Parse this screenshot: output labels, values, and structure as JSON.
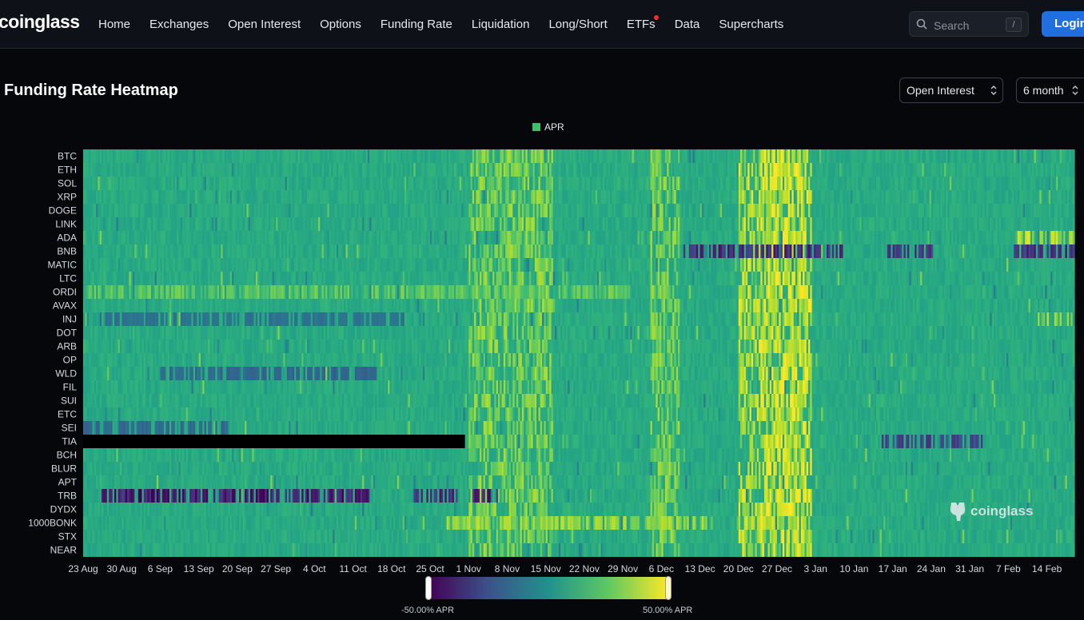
{
  "brand": {
    "logo_text": "coinglass"
  },
  "nav": {
    "items": [
      {
        "label": "Home",
        "name": "nav-home"
      },
      {
        "label": "Exchanges",
        "name": "nav-exchanges"
      },
      {
        "label": "Open Interest",
        "name": "nav-open-interest"
      },
      {
        "label": "Options",
        "name": "nav-options"
      },
      {
        "label": "Funding Rate",
        "name": "nav-funding-rate"
      },
      {
        "label": "Liquidation",
        "name": "nav-liquidation"
      },
      {
        "label": "Long/Short",
        "name": "nav-long-short"
      },
      {
        "label": "ETFs",
        "name": "nav-etfs",
        "badge": true
      },
      {
        "label": "Data",
        "name": "nav-data"
      },
      {
        "label": "Supercharts",
        "name": "nav-supercharts"
      }
    ]
  },
  "search": {
    "placeholder": "Search",
    "shortcut": "/"
  },
  "login": {
    "label": "Login"
  },
  "page": {
    "title": "Funding Rate Heatmap"
  },
  "controls": {
    "sort_value": "Open Interest",
    "range_value": "6 month"
  },
  "legend": {
    "label": "APR",
    "color": "#3fbf6c"
  },
  "watermark": {
    "text": "coinglass"
  },
  "colorbar": {
    "min_label": "-50.00% APR",
    "max_label": "50.00% APR",
    "colors": [
      "#440154",
      "#3b528b",
      "#21918c",
      "#5ec962",
      "#fde725"
    ]
  },
  "chart_data": {
    "type": "heatmap",
    "title": "",
    "value_label": "APR",
    "value_range": [
      -50,
      50
    ],
    "rows": [
      "BTC",
      "ETH",
      "SOL",
      "XRP",
      "DOGE",
      "LINK",
      "ADA",
      "BNB",
      "MATIC",
      "LTC",
      "ORDI",
      "AVAX",
      "INJ",
      "DOT",
      "ARB",
      "OP",
      "WLD",
      "FIL",
      "SUI",
      "ETC",
      "SEI",
      "TIA",
      "BCH",
      "BLUR",
      "APT",
      "TRB",
      "DYDX",
      "1000BONK",
      "STX",
      "NEAR"
    ],
    "x_ticks": [
      "23 Aug",
      "30 Aug",
      "6 Sep",
      "13 Sep",
      "20 Sep",
      "27 Sep",
      "4 Oct",
      "11 Oct",
      "18 Oct",
      "25 Oct",
      "1 Nov",
      "8 Nov",
      "15 Nov",
      "22 Nov",
      "29 Nov",
      "6 Dec",
      "13 Dec",
      "20 Dec",
      "27 Dec",
      "3 Jan",
      "10 Jan",
      "17 Jan",
      "24 Jan",
      "31 Jan",
      "7 Feb",
      "14 Feb"
    ],
    "x_range": [
      "23 Aug",
      "19 Feb"
    ],
    "baseline_apr": 10.95,
    "no_data": [
      {
        "row": "TIA",
        "from": "23 Aug",
        "to": "31 Oct"
      }
    ],
    "high_periods": [
      {
        "from": "1 Nov",
        "to": "16 Nov",
        "apr": 35
      },
      {
        "from": "4 Dec",
        "to": "9 Dec",
        "apr": 35
      },
      {
        "from": "20 Dec",
        "to": "1 Jan",
        "apr": 45
      },
      {
        "from": "24 Dec",
        "to": "2 Jan",
        "apr": 50
      }
    ],
    "row_highlights": [
      {
        "row": "BNB",
        "from": "10 Dec",
        "to": "8 Jan",
        "apr": -45
      },
      {
        "row": "BNB",
        "from": "16 Jan",
        "to": "24 Jan",
        "apr": -40
      },
      {
        "row": "BNB",
        "from": "8 Feb",
        "to": "19 Feb",
        "apr": -45
      },
      {
        "row": "TRB",
        "from": "26 Aug",
        "to": "14 Oct",
        "apr": -50
      },
      {
        "row": "TRB",
        "from": "22 Oct",
        "to": "6 Nov",
        "apr": -45
      },
      {
        "row": "TIA",
        "from": "15 Jan",
        "to": "2 Feb",
        "apr": -35
      },
      {
        "row": "INJ",
        "from": "26 Aug",
        "to": "20 Oct",
        "apr": -15
      },
      {
        "row": "WLD",
        "from": "6 Sep",
        "to": "15 Oct",
        "apr": -20
      },
      {
        "row": "1000BONK",
        "from": "28 Oct",
        "to": "15 Dec",
        "apr": 40
      },
      {
        "row": "ORDI",
        "from": "23 Aug",
        "to": "30 Nov",
        "apr": 30
      },
      {
        "row": "ADA",
        "from": "8 Feb",
        "to": "19 Feb",
        "apr": 45
      },
      {
        "row": "INJ",
        "from": "12 Feb",
        "to": "19 Feb",
        "apr": 45
      },
      {
        "row": "SEI",
        "from": "23 Aug",
        "to": "18 Sep",
        "apr": -20
      }
    ]
  }
}
